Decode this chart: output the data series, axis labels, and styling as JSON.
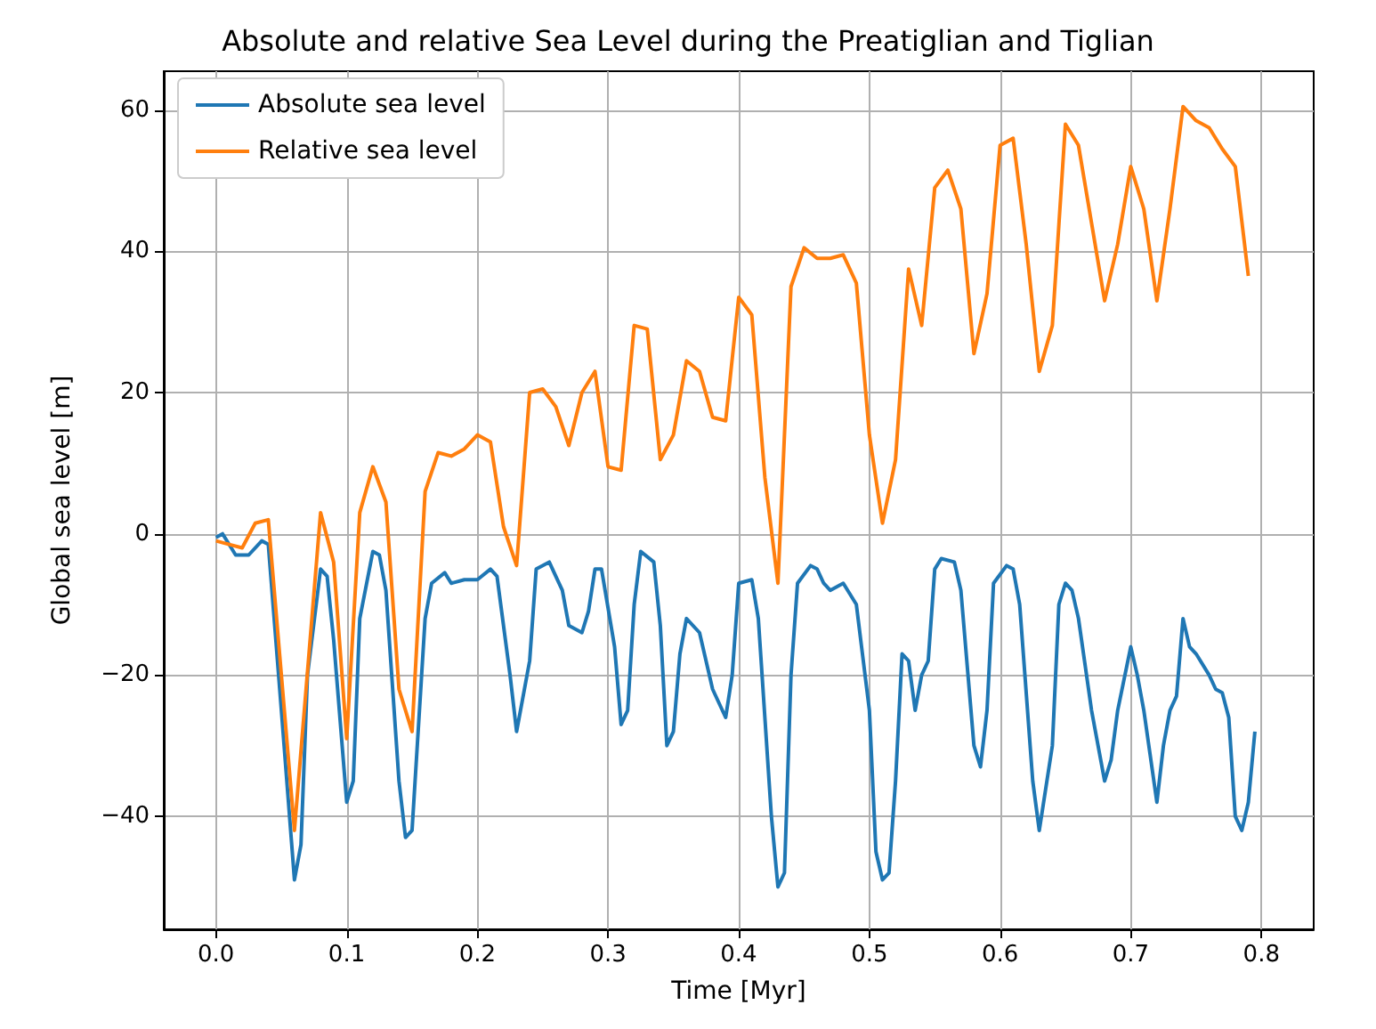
{
  "chart_data": {
    "type": "line",
    "title": "Absolute and relative Sea Level during the Preatiglian and Tiglian",
    "xlabel": "Time [Myr]",
    "ylabel": "Global sea level [m]",
    "xlim": [
      -0.04,
      0.84
    ],
    "ylim": [
      -56,
      65.5
    ],
    "xticks": [
      {
        "value": 0,
        "label": "0.0"
      },
      {
        "value": 0.1,
        "label": "0.1"
      },
      {
        "value": 0.2,
        "label": "0.2"
      },
      {
        "value": 0.3,
        "label": "0.3"
      },
      {
        "value": 0.4,
        "label": "0.4"
      },
      {
        "value": 0.5,
        "label": "0.5"
      },
      {
        "value": 0.6,
        "label": "0.6"
      },
      {
        "value": 0.7,
        "label": "0.7"
      },
      {
        "value": 0.8,
        "label": "0.8"
      }
    ],
    "yticks": [
      {
        "value": -40,
        "label": "−40"
      },
      {
        "value": -20,
        "label": "−20"
      },
      0,
      20,
      40,
      60
    ],
    "grid": true,
    "legend": "top left",
    "line_style": "solid",
    "marker": "none",
    "series": [
      {
        "name": "Absolute sea level",
        "color": "#1f77b4",
        "x": [
          0,
          0.005,
          0.015,
          0.025,
          0.035,
          0.04,
          0.05,
          0.06,
          0.065,
          0.07,
          0.08,
          0.085,
          0.09,
          0.1,
          0.105,
          0.11,
          0.12,
          0.125,
          0.13,
          0.14,
          0.145,
          0.15,
          0.16,
          0.165,
          0.175,
          0.18,
          0.19,
          0.2,
          0.21,
          0.215,
          0.225,
          0.23,
          0.24,
          0.245,
          0.255,
          0.26,
          0.265,
          0.27,
          0.28,
          0.285,
          0.29,
          0.295,
          0.305,
          0.31,
          0.315,
          0.32,
          0.325,
          0.335,
          0.34,
          0.345,
          0.35,
          0.355,
          0.36,
          0.37,
          0.38,
          0.39,
          0.395,
          0.4,
          0.41,
          0.415,
          0.425,
          0.43,
          0.435,
          0.44,
          0.445,
          0.455,
          0.46,
          0.465,
          0.47,
          0.48,
          0.49,
          0.5,
          0.505,
          0.51,
          0.515,
          0.52,
          0.525,
          0.53,
          0.535,
          0.54,
          0.545,
          0.55,
          0.555,
          0.565,
          0.57,
          0.58,
          0.585,
          0.59,
          0.595,
          0.605,
          0.61,
          0.615,
          0.625,
          0.63,
          0.64,
          0.645,
          0.65,
          0.655,
          0.66,
          0.67,
          0.68,
          0.685,
          0.69,
          0.7,
          0.705,
          0.71,
          0.72,
          0.725,
          0.73,
          0.735,
          0.74,
          0.745,
          0.75,
          0.76,
          0.765,
          0.77,
          0.775,
          0.78,
          0.785,
          0.79,
          0.795
        ],
        "values": [
          -0.5,
          0,
          -3,
          -3,
          -1,
          -1.5,
          -25,
          -49,
          -44,
          -20,
          -5,
          -6,
          -15,
          -38,
          -35,
          -12,
          -2.5,
          -3,
          -8,
          -35,
          -43,
          -42,
          -12,
          -7,
          -5.5,
          -7,
          -6.5,
          -6.5,
          -5,
          -6,
          -20,
          -28,
          -18,
          -5,
          -4,
          -6,
          -8,
          -13,
          -14,
          -11,
          -5,
          -5,
          -16,
          -27,
          -25,
          -10,
          -2.5,
          -4,
          -13,
          -30,
          -28,
          -17,
          -12,
          -14,
          -22,
          -26,
          -20,
          -7,
          -6.5,
          -12,
          -40,
          -50,
          -48,
          -20,
          -7,
          -4.5,
          -5,
          -7,
          -8,
          -7,
          -10,
          -25,
          -45,
          -49,
          -48,
          -35,
          -17,
          -18,
          -25,
          -20,
          -18,
          -5,
          -3.5,
          -4,
          -8,
          -30,
          -33,
          -25,
          -7,
          -4.5,
          -5,
          -10,
          -35,
          -42,
          -30,
          -10,
          -7,
          -8,
          -12,
          -25,
          -35,
          -32,
          -25,
          -16,
          -20,
          -25,
          -38,
          -30,
          -25,
          -23,
          -12,
          -16,
          -17,
          -20,
          -22,
          -22.5,
          -26,
          -40,
          -42,
          -38,
          -28
        ]
      },
      {
        "name": "Relative sea level",
        "color": "#ff7f0e",
        "x": [
          0,
          0.01,
          0.02,
          0.03,
          0.04,
          0.06,
          0.08,
          0.09,
          0.1,
          0.11,
          0.12,
          0.13,
          0.14,
          0.15,
          0.16,
          0.17,
          0.18,
          0.19,
          0.2,
          0.21,
          0.22,
          0.23,
          0.24,
          0.25,
          0.26,
          0.27,
          0.28,
          0.29,
          0.3,
          0.31,
          0.32,
          0.33,
          0.34,
          0.35,
          0.36,
          0.37,
          0.38,
          0.39,
          0.4,
          0.41,
          0.42,
          0.43,
          0.44,
          0.45,
          0.46,
          0.47,
          0.48,
          0.49,
          0.5,
          0.51,
          0.52,
          0.53,
          0.54,
          0.55,
          0.56,
          0.57,
          0.58,
          0.59,
          0.6,
          0.61,
          0.62,
          0.63,
          0.64,
          0.65,
          0.66,
          0.67,
          0.68,
          0.69,
          0.7,
          0.71,
          0.72,
          0.73,
          0.74,
          0.75,
          0.76,
          0.77,
          0.78,
          0.79
        ],
        "values": [
          -1,
          -1.5,
          -2,
          1.5,
          2,
          -42,
          3,
          -4,
          -29,
          3,
          9.5,
          4.5,
          -22,
          -28,
          6,
          11.5,
          11,
          12,
          14,
          13,
          1,
          -4.5,
          20,
          20.5,
          18,
          12.5,
          20,
          23,
          9.5,
          9,
          29.5,
          29,
          10.5,
          14,
          24.5,
          23,
          16.5,
          16,
          33.5,
          31,
          8,
          -7,
          35,
          40.5,
          39,
          39,
          39.5,
          35.5,
          14,
          1.5,
          10.5,
          37.5,
          29.5,
          49,
          51.5,
          46,
          25.5,
          34,
          55,
          56,
          41,
          23,
          29.5,
          58,
          55,
          44,
          33,
          41,
          52,
          46,
          33,
          46,
          60.5,
          58.5,
          57.5,
          54.5,
          52,
          36.5
        ]
      }
    ]
  }
}
